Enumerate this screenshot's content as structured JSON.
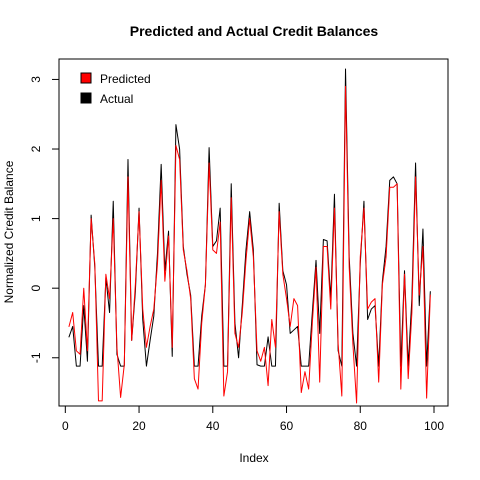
{
  "chart_data": {
    "type": "line",
    "title": "Predicted and Actual Credit Balances",
    "xlabel": "Index",
    "ylabel": "Normalized Credit Balance",
    "xlim": [
      1,
      100
    ],
    "ylim": [
      -1.65,
      3.15
    ],
    "x_ticks": [
      0,
      20,
      40,
      60,
      80,
      100
    ],
    "y_ticks": [
      -1,
      0,
      1,
      2,
      3
    ],
    "grid": false,
    "legend_position": "top-left",
    "x": [
      1,
      2,
      3,
      4,
      5,
      6,
      7,
      8,
      9,
      10,
      11,
      12,
      13,
      14,
      15,
      16,
      17,
      18,
      19,
      20,
      21,
      22,
      23,
      24,
      25,
      26,
      27,
      28,
      29,
      30,
      31,
      32,
      33,
      34,
      35,
      36,
      37,
      38,
      39,
      40,
      41,
      42,
      43,
      44,
      45,
      46,
      47,
      48,
      49,
      50,
      51,
      52,
      53,
      54,
      55,
      56,
      57,
      58,
      59,
      60,
      61,
      62,
      63,
      64,
      65,
      66,
      67,
      68,
      69,
      70,
      71,
      72,
      73,
      74,
      75,
      76,
      77,
      78,
      79,
      80,
      81,
      82,
      83,
      84,
      85,
      86,
      87,
      88,
      89,
      90,
      91,
      92,
      93,
      94,
      95,
      96,
      97,
      98,
      99,
      100
    ],
    "series": [
      {
        "name": "Actual",
        "color": "#000000",
        "values": [
          -0.7,
          -0.55,
          -1.12,
          -1.12,
          -0.25,
          -1.05,
          1.05,
          0.3,
          -1.12,
          -1.12,
          0.15,
          -0.35,
          1.25,
          -0.95,
          -1.12,
          -1.12,
          1.85,
          -0.75,
          -0.05,
          1.15,
          -0.45,
          -1.12,
          -0.75,
          -0.4,
          0.5,
          1.78,
          0.25,
          0.82,
          -0.98,
          2.35,
          2.0,
          0.6,
          0.2,
          -0.1,
          -1.12,
          -1.12,
          -0.4,
          0.05,
          2.02,
          0.6,
          0.68,
          1.15,
          -1.12,
          -1.12,
          1.5,
          -0.5,
          -1.0,
          -0.25,
          0.55,
          1.1,
          0.55,
          -1.1,
          -1.12,
          -1.12,
          -0.7,
          -1.12,
          -1.12,
          1.22,
          0.25,
          0.05,
          -0.65,
          -0.6,
          -0.55,
          -1.12,
          -1.12,
          -1.12,
          -0.35,
          0.4,
          -0.65,
          0.7,
          0.68,
          -0.15,
          1.35,
          -0.9,
          -1.12,
          3.15,
          0.45,
          -0.65,
          -1.12,
          0.35,
          1.25,
          -0.45,
          -0.3,
          -0.25,
          -1.12,
          0.1,
          0.6,
          1.55,
          1.6,
          1.5,
          -1.12,
          0.25,
          -1.12,
          -0.15,
          1.8,
          -0.25,
          0.85,
          -1.12,
          -0.05,
          null
        ]
      },
      {
        "name": "Predicted",
        "color": "#ff0000",
        "values": [
          -0.55,
          -0.35,
          -0.9,
          -0.95,
          0.0,
          -0.9,
          1.0,
          0.35,
          -1.62,
          -1.62,
          0.2,
          -0.15,
          1.0,
          -0.85,
          -1.57,
          -1.1,
          1.6,
          -0.75,
          0.05,
          1.1,
          -0.3,
          -0.85,
          -0.55,
          -0.3,
          0.35,
          1.55,
          0.1,
          0.75,
          -0.85,
          2.05,
          1.85,
          0.55,
          0.25,
          -0.15,
          -1.3,
          -1.45,
          -0.5,
          0.05,
          1.8,
          0.55,
          0.5,
          0.95,
          -1.55,
          -1.2,
          1.3,
          -0.65,
          -0.85,
          -0.35,
          0.4,
          1.0,
          0.45,
          -0.9,
          -1.05,
          -0.85,
          -1.4,
          -0.45,
          -0.85,
          1.1,
          0.2,
          -0.15,
          -0.55,
          -0.15,
          -0.25,
          -1.5,
          -1.2,
          -1.45,
          -0.5,
          0.3,
          -1.35,
          0.6,
          0.6,
          -0.3,
          1.15,
          -0.8,
          -1.55,
          2.9,
          0.3,
          -0.8,
          -1.65,
          0.45,
          1.15,
          -0.3,
          -0.2,
          -0.15,
          -1.35,
          0.05,
          0.45,
          1.45,
          1.45,
          1.5,
          -1.45,
          0.2,
          -1.3,
          -0.35,
          1.6,
          -0.1,
          0.6,
          -1.58,
          -0.1,
          null
        ]
      }
    ]
  }
}
